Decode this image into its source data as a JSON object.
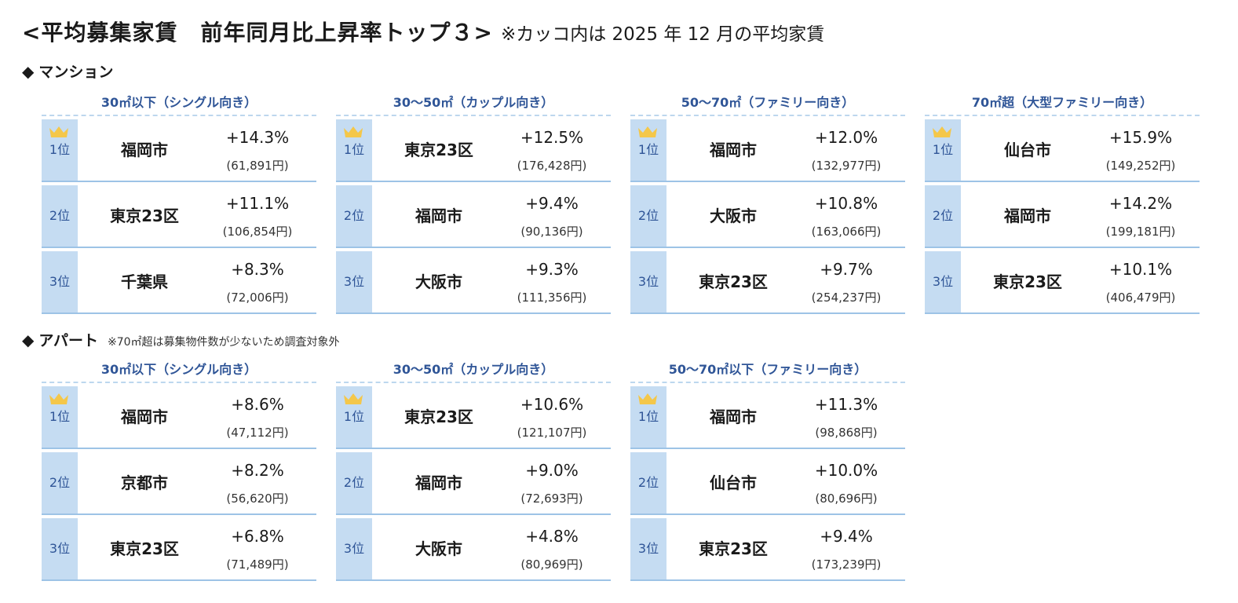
{
  "title": {
    "main": "<平均募集家賃　前年同月比上昇率トップ３>",
    "note": "※カッコ内は 2025 年 12 月の平均家賃"
  },
  "colors": {
    "header_text": "#2f5597",
    "rank_bg": "#c5dcf2",
    "rule": "#9dc3e6",
    "crown": "#f4c74a"
  },
  "icons": {
    "crown": "crown-icon",
    "diamond": "◆"
  },
  "mansion": {
    "title": "マンション",
    "categories": [
      {
        "header": "30㎡以下（シングル向き）",
        "rows": [
          {
            "rank": "1位",
            "city": "福岡市",
            "pct": "+14.3%",
            "rent": "(61,891円)"
          },
          {
            "rank": "2位",
            "city": "東京23区",
            "pct": "+11.1%",
            "rent": "(106,854円)"
          },
          {
            "rank": "3位",
            "city": "千葉県",
            "pct": "+8.3%",
            "rent": "(72,006円)"
          }
        ]
      },
      {
        "header": "30～50㎡（カップル向き）",
        "rows": [
          {
            "rank": "1位",
            "city": "東京23区",
            "pct": "+12.5%",
            "rent": "(176,428円)"
          },
          {
            "rank": "2位",
            "city": "福岡市",
            "pct": "+9.4%",
            "rent": "(90,136円)"
          },
          {
            "rank": "3位",
            "city": "大阪市",
            "pct": "+9.3%",
            "rent": "(111,356円)"
          }
        ]
      },
      {
        "header": "50～70㎡（ファミリー向き）",
        "rows": [
          {
            "rank": "1位",
            "city": "福岡市",
            "pct": "+12.0%",
            "rent": "(132,977円)"
          },
          {
            "rank": "2位",
            "city": "大阪市",
            "pct": "+10.8%",
            "rent": "(163,066円)"
          },
          {
            "rank": "3位",
            "city": "東京23区",
            "pct": "+9.7%",
            "rent": "(254,237円)"
          }
        ]
      },
      {
        "header": "70㎡超（大型ファミリー向き）",
        "rows": [
          {
            "rank": "1位",
            "city": "仙台市",
            "pct": "+15.9%",
            "rent": "(149,252円)"
          },
          {
            "rank": "2位",
            "city": "福岡市",
            "pct": "+14.2%",
            "rent": "(199,181円)"
          },
          {
            "rank": "3位",
            "city": "東京23区",
            "pct": "+10.1%",
            "rent": "(406,479円)"
          }
        ]
      }
    ]
  },
  "apart": {
    "title": "アパート",
    "note": "※70㎡超は募集物件数が少ないため調査対象外",
    "categories": [
      {
        "header": "30㎡以下（シングル向き）",
        "rows": [
          {
            "rank": "1位",
            "city": "福岡市",
            "pct": "+8.6%",
            "rent": "(47,112円)"
          },
          {
            "rank": "2位",
            "city": "京都市",
            "pct": "+8.2%",
            "rent": "(56,620円)"
          },
          {
            "rank": "3位",
            "city": "東京23区",
            "pct": "+6.8%",
            "rent": "(71,489円)"
          }
        ]
      },
      {
        "header": "30～50㎡（カップル向き）",
        "rows": [
          {
            "rank": "1位",
            "city": "東京23区",
            "pct": "+10.6%",
            "rent": "(121,107円)"
          },
          {
            "rank": "2位",
            "city": "福岡市",
            "pct": "+9.0%",
            "rent": "(72,693円)"
          },
          {
            "rank": "3位",
            "city": "大阪市",
            "pct": "+4.8%",
            "rent": "(80,969円)"
          }
        ]
      },
      {
        "header": "50～70㎡以下（ファミリー向き）",
        "rows": [
          {
            "rank": "1位",
            "city": "福岡市",
            "pct": "+11.3%",
            "rent": "(98,868円)"
          },
          {
            "rank": "2位",
            "city": "仙台市",
            "pct": "+10.0%",
            "rent": "(80,696円)"
          },
          {
            "rank": "3位",
            "city": "東京23区",
            "pct": "+9.4%",
            "rent": "(173,239円)"
          }
        ]
      }
    ]
  }
}
